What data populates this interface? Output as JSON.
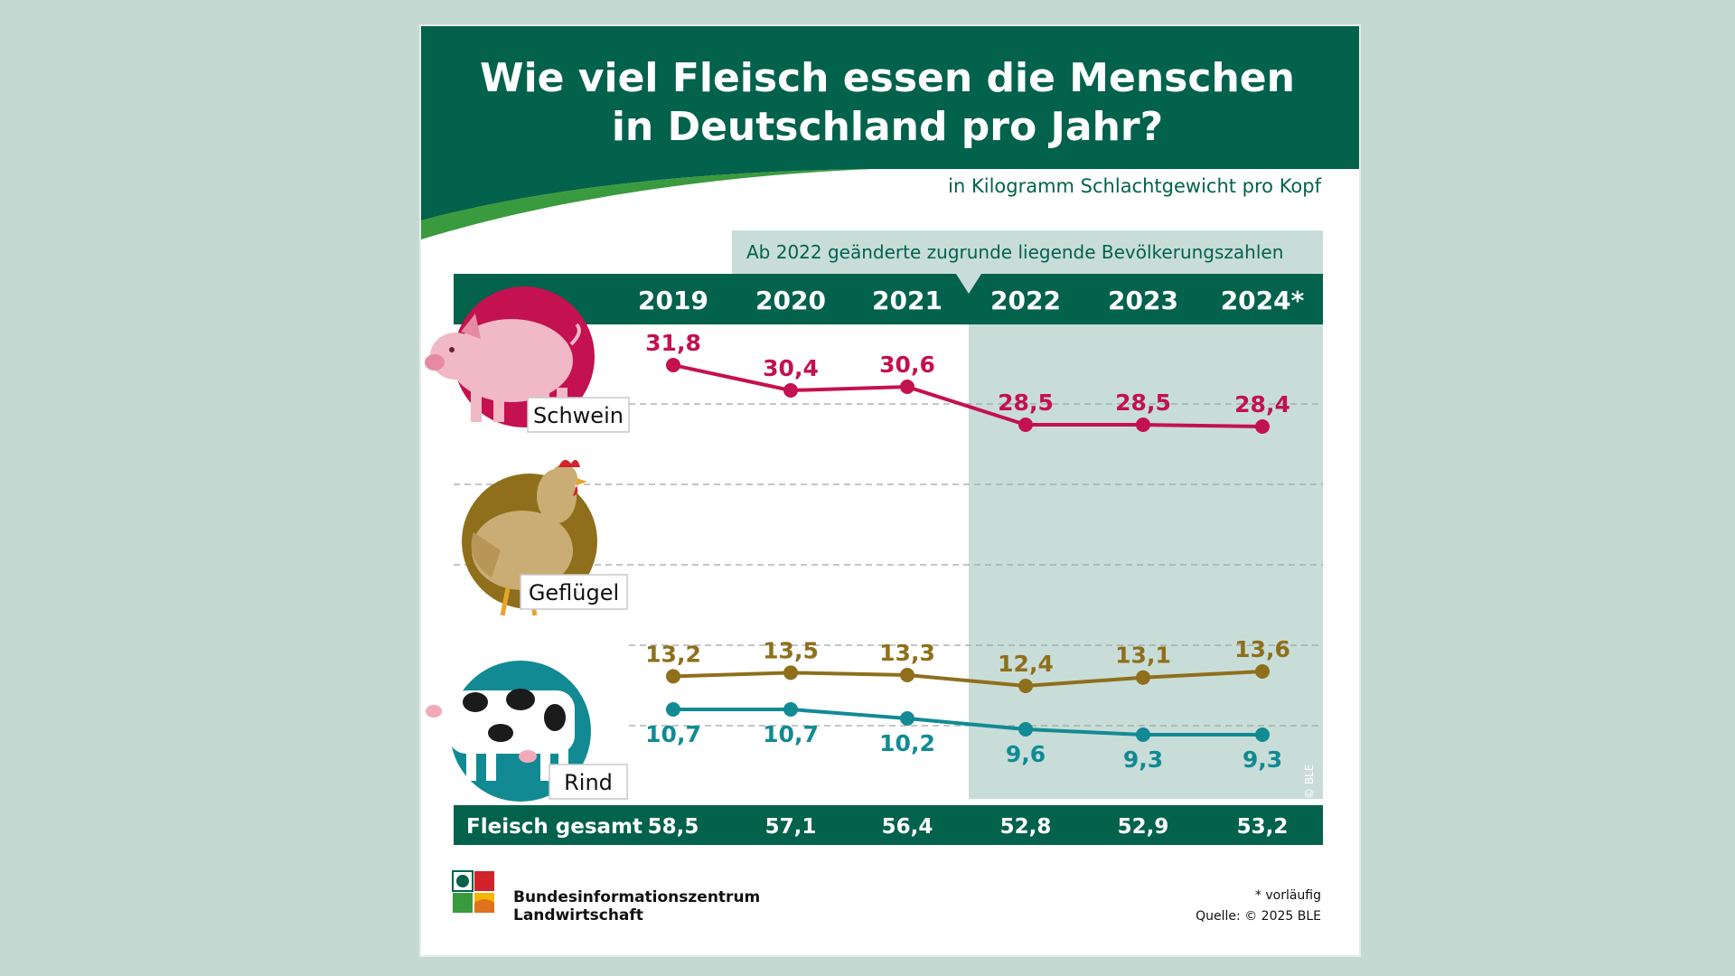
{
  "header": {
    "title_line1": "Wie viel Fleisch essen die Menschen",
    "title_line2": "in Deutschland pro Jahr?",
    "subtitle": "in Kilogramm Schlachtgewicht pro Kopf"
  },
  "notice": "Ab 2022 geänderte zugrunde liegende Bevölkerungszahlen",
  "credit": "© BLE",
  "footer": {
    "org_line1": "Bundesinformationszentrum",
    "org_line2": "Landwirtschaft",
    "footnote": "* vorläufig",
    "source": "Quelle: © 2025 BLE"
  },
  "colors": {
    "brand_green": "#03624b",
    "schwein": "#c4114f",
    "gefluegel": "#8f6f1b",
    "rind": "#128a94",
    "shade": "#c9ddd8"
  },
  "icons": [
    "pig-icon",
    "chicken-icon",
    "cow-icon",
    "ble-logo-icon"
  ],
  "chart_data": {
    "type": "line",
    "x": [
      "2019",
      "2020",
      "2021",
      "2022",
      "2023",
      "2024*"
    ],
    "shaded_from": "2022",
    "series": [
      {
        "name": "Schwein",
        "values": [
          31.8,
          30.4,
          30.6,
          28.5,
          28.5,
          28.4
        ],
        "labels": [
          "31,8",
          "30,4",
          "30,6",
          "28,5",
          "28,5",
          "28,4"
        ]
      },
      {
        "name": "Geflügel",
        "values": [
          13.2,
          13.5,
          13.3,
          12.4,
          13.1,
          13.6
        ],
        "labels": [
          "13,2",
          "13,5",
          "13,3",
          "12,4",
          "13,1",
          "13,6"
        ]
      },
      {
        "name": "Rind",
        "values": [
          10.7,
          10.7,
          10.2,
          9.6,
          9.3,
          9.3
        ],
        "labels": [
          "10,7",
          "10,7",
          "10,2",
          "9,6",
          "9,3",
          "9,3"
        ]
      }
    ],
    "total": {
      "name": "Fleisch gesamt",
      "values": [
        58.5,
        57.1,
        56.4,
        52.8,
        52.9,
        53.2
      ],
      "labels": [
        "58,5",
        "57,1",
        "56,4",
        "52,8",
        "52,9",
        "53,2"
      ]
    }
  }
}
